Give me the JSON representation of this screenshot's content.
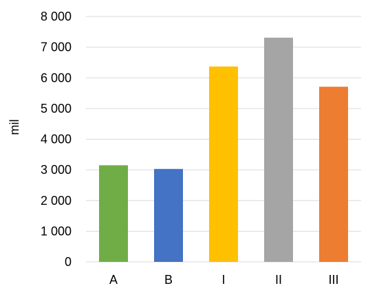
{
  "chart_data": {
    "type": "bar",
    "categories": [
      "A",
      "B",
      "I",
      "II",
      "III"
    ],
    "values": [
      3150,
      3030,
      6370,
      7310,
      5710
    ],
    "bar_colors": [
      "#70AD47",
      "#4472C4",
      "#FFC000",
      "#A5A5A5",
      "#ED7D31"
    ],
    "title": "",
    "xlabel": "",
    "ylabel": "mil",
    "ylim": [
      0,
      8000
    ],
    "yticks": [
      0,
      1000,
      2000,
      3000,
      4000,
      5000,
      6000,
      7000,
      8000
    ],
    "ytick_labels": [
      "0",
      "1 000",
      "2 000",
      "3 000",
      "4 000",
      "5 000",
      "6 000",
      "7 000",
      "8 000"
    ],
    "grid": true,
    "gridline_color": "#D9D9D9",
    "legend": "none"
  }
}
